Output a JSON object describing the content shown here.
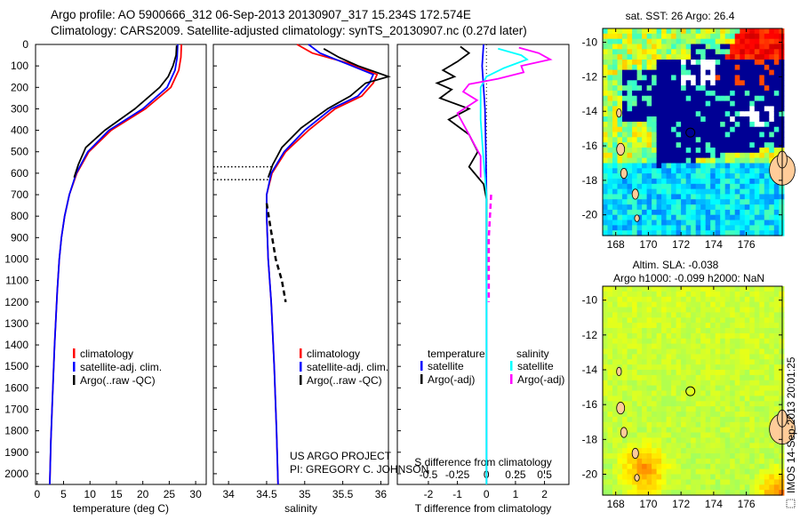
{
  "title": {
    "line1": "Argo profile: AO 5900666_312 06-Sep-2013 20130907_317 15.234S 172.574E",
    "line2": "Climatology: CARS2009. Satellite-adjusted climatology: synTS_20130907.nc (0.27d later)"
  },
  "depth_ticks": [
    "0",
    "100",
    "200",
    "300",
    "400",
    "500",
    "600",
    "700",
    "800",
    "900",
    "1000",
    "1100",
    "1200",
    "1300",
    "1400",
    "1500",
    "1600",
    "1700",
    "1800",
    "1900",
    "2000"
  ],
  "chart_data": [
    {
      "type": "line",
      "name": "temperature-profile",
      "xlabel": "temperature (deg C)",
      "ylabel": "depth",
      "xlim": [
        -0.3,
        32
      ],
      "ylim": [
        2050,
        0
      ],
      "xticks": [
        "0",
        "5",
        "10",
        "15",
        "20",
        "25",
        "30"
      ],
      "xtick_values": [
        0,
        5,
        10,
        15,
        20,
        25,
        30
      ],
      "legend": [
        "climatology",
        "satellite-adj. clim.",
        "Argo(..raw -QC)"
      ],
      "series": [
        {
          "name": "climatology",
          "color": "#ff0000",
          "points": [
            [
              27.3,
              0
            ],
            [
              27.2,
              60
            ],
            [
              26.8,
              120
            ],
            [
              25.3,
              200
            ],
            [
              20.5,
              300
            ],
            [
              14,
              400
            ],
            [
              9.8,
              500
            ],
            [
              7.5,
              600
            ],
            [
              6.1,
              700
            ],
            [
              5.2,
              800
            ],
            [
              4.6,
              900
            ],
            [
              4.2,
              1000
            ],
            [
              3.8,
              1150
            ],
            [
              3.3,
              1400
            ],
            [
              2.9,
              1650
            ],
            [
              2.6,
              1850
            ],
            [
              2.4,
              2050
            ]
          ]
        },
        {
          "name": "satellite-adj. clim.",
          "color": "#0000ff",
          "points": [
            [
              26.6,
              0
            ],
            [
              26.5,
              60
            ],
            [
              26.1,
              120
            ],
            [
              24.6,
              200
            ],
            [
              20,
              300
            ],
            [
              13.6,
              400
            ],
            [
              9.6,
              500
            ],
            [
              7.4,
              600
            ],
            [
              6.1,
              700
            ],
            [
              5.2,
              800
            ],
            [
              4.6,
              900
            ],
            [
              4.2,
              1000
            ],
            [
              3.8,
              1150
            ],
            [
              3.3,
              1400
            ],
            [
              2.9,
              1650
            ],
            [
              2.6,
              1850
            ],
            [
              2.4,
              2050
            ]
          ]
        },
        {
          "name": "Argo(..raw -QC)",
          "color": "#000000",
          "points": [
            [
              26.4,
              5
            ],
            [
              26.3,
              50
            ],
            [
              25.7,
              100
            ],
            [
              24.8,
              150
            ],
            [
              23.2,
              200
            ],
            [
              18.5,
              300
            ],
            [
              12.8,
              400
            ],
            [
              9.2,
              480
            ],
            [
              7.8,
              560
            ],
            [
              7,
              620
            ]
          ]
        }
      ]
    },
    {
      "type": "line",
      "name": "salinity-profile",
      "xlabel": "salinity",
      "xlim": [
        33.8,
        36.1
      ],
      "ylim": [
        2050,
        0
      ],
      "xticks": [
        "34",
        "34.5",
        "35",
        "35.5",
        "36"
      ],
      "xtick_values": [
        34,
        34.5,
        35,
        35.5,
        36
      ],
      "legend": [
        "climatology",
        "satellite-adj. clim.",
        "Argo(..raw -QC)"
      ],
      "dotted_depths": [
        570,
        630
      ],
      "series": [
        {
          "name": "climatology",
          "color": "#ff0000",
          "points": [
            [
              34.9,
              0
            ],
            [
              35.1,
              40
            ],
            [
              35.6,
              90
            ],
            [
              35.95,
              140
            ],
            [
              35.9,
              180
            ],
            [
              35.75,
              240
            ],
            [
              35.4,
              300
            ],
            [
              35.05,
              400
            ],
            [
              34.75,
              500
            ],
            [
              34.57,
              600
            ],
            [
              34.5,
              700
            ],
            [
              34.5,
              800
            ],
            [
              34.52,
              1000
            ],
            [
              34.56,
              1200
            ],
            [
              34.6,
              1500
            ],
            [
              34.63,
              1800
            ],
            [
              34.65,
              2050
            ]
          ]
        },
        {
          "name": "satellite-adj. clim.",
          "color": "#0000ff",
          "points": [
            [
              35.05,
              0
            ],
            [
              35.2,
              40
            ],
            [
              35.55,
              90
            ],
            [
              35.9,
              140
            ],
            [
              35.85,
              180
            ],
            [
              35.7,
              240
            ],
            [
              35.35,
              300
            ],
            [
              35.0,
              400
            ],
            [
              34.73,
              500
            ],
            [
              34.56,
              600
            ],
            [
              34.5,
              700
            ],
            [
              34.5,
              800
            ],
            [
              34.52,
              1000
            ],
            [
              34.56,
              1200
            ],
            [
              34.6,
              1500
            ],
            [
              34.63,
              1800
            ],
            [
              34.65,
              2050
            ]
          ]
        },
        {
          "name": "Argo(..raw -QC)",
          "color": "#000000",
          "points": [
            [
              35.25,
              20
            ],
            [
              35.45,
              60
            ],
            [
              35.7,
              100
            ],
            [
              36.1,
              150
            ],
            [
              35.8,
              180
            ],
            [
              35.6,
              240
            ],
            [
              35.3,
              300
            ],
            [
              34.95,
              390
            ],
            [
              34.7,
              480
            ],
            [
              34.58,
              560
            ],
            [
              34.52,
              620
            ]
          ]
        },
        {
          "name": "Argo(..raw -QC) deep",
          "color": "#000000",
          "dashed": true,
          "points": [
            [
              34.5,
              740
            ],
            [
              34.55,
              850
            ],
            [
              34.62,
              1000
            ],
            [
              34.7,
              1100
            ],
            [
              34.75,
              1200
            ]
          ]
        }
      ]
    },
    {
      "type": "line",
      "name": "difference-profile",
      "xlabel": "T difference from climatology",
      "x2label": "S difference from climatology",
      "xlim": [
        -3.07,
        2.84
      ],
      "ylim": [
        2050,
        0
      ],
      "xticks": [
        "-2",
        "-1",
        "0",
        "1",
        "2"
      ],
      "xtick_values": [
        -2,
        -1,
        0,
        1,
        2
      ],
      "x2ticks": [
        "-0.5",
        "-0.25",
        "0",
        "0.25",
        "0.5"
      ],
      "x2tick_values": [
        -0.5,
        -0.25,
        0,
        0.25,
        0.5
      ],
      "legend_temperature_title": "temperature",
      "legend_salinity_title": "salinity",
      "legend": [
        "satellite",
        "Argo(-adj)",
        "satellite",
        "Argo(-adj)"
      ],
      "series": [
        {
          "name": "temperature satellite",
          "axis": "T",
          "color": "#0000ff",
          "points": [
            [
              -0.1,
              0
            ],
            [
              -0.15,
              100
            ],
            [
              -0.1,
              200
            ],
            [
              -0.05,
              300
            ],
            [
              -0.02,
              500
            ],
            [
              0,
              700
            ],
            [
              0,
              2050
            ]
          ]
        },
        {
          "name": "temperature Argo(-adj)",
          "axis": "T",
          "color": "#000000",
          "points": [
            [
              -0.9,
              10
            ],
            [
              -0.6,
              40
            ],
            [
              -1.0,
              80
            ],
            [
              -1.5,
              120
            ],
            [
              -1.1,
              150
            ],
            [
              -1.7,
              180
            ],
            [
              -1.2,
              210
            ],
            [
              -1.6,
              250
            ],
            [
              -0.6,
              300
            ],
            [
              -1.3,
              350
            ],
            [
              -0.6,
              420
            ],
            [
              -0.3,
              500
            ],
            [
              -0.6,
              570
            ],
            [
              -0.1,
              650
            ],
            [
              0,
              720
            ],
            [
              0,
              1100
            ]
          ]
        },
        {
          "name": "salinity satellite",
          "axis": "S",
          "color": "#00ffff",
          "points": [
            [
              0.1,
              20
            ],
            [
              0.3,
              50
            ],
            [
              0.35,
              70
            ],
            [
              0.15,
              110
            ],
            [
              0,
              150
            ],
            [
              -0.05,
              200
            ],
            [
              -0.05,
              350
            ],
            [
              -0.03,
              500
            ],
            [
              0,
              700
            ],
            [
              0,
              2050
            ]
          ]
        },
        {
          "name": "salinity Argo(-adj)",
          "axis": "S",
          "color": "#ff00ff",
          "points": [
            [
              0.28,
              15
            ],
            [
              0.45,
              40
            ],
            [
              0.55,
              70
            ],
            [
              0.3,
              100
            ],
            [
              0.32,
              130
            ],
            [
              0.1,
              160
            ],
            [
              -0.15,
              185
            ],
            [
              -0.2,
              220
            ],
            [
              -0.08,
              260
            ],
            [
              -0.25,
              320
            ],
            [
              -0.15,
              420
            ],
            [
              -0.05,
              520
            ],
            [
              -0.05,
              620
            ]
          ]
        },
        {
          "name": "salinity Argo(-adj) deep",
          "axis": "S",
          "color": "#ff00ff",
          "dashed": true,
          "points": [
            [
              0.04,
              700
            ],
            [
              0.02,
              900
            ],
            [
              0.02,
              1200
            ]
          ]
        }
      ]
    }
  ],
  "maps": [
    {
      "name": "sst-map",
      "title": "sat. SST: 26 Argo: 26.4",
      "lon_range": [
        167.2,
        178.2
      ],
      "lat_range": [
        -21.2,
        -9.2
      ],
      "lon_ticks": [
        "168",
        "170",
        "172",
        "174",
        "176"
      ],
      "lon_tick_values": [
        168,
        170,
        172,
        174,
        176
      ],
      "lat_ticks": [
        "-10",
        "-12",
        "-14",
        "-16",
        "-18",
        "-20"
      ],
      "lat_tick_values": [
        -10,
        -12,
        -14,
        -16,
        -18,
        -20
      ],
      "float_position": [
        172.574,
        -15.234
      ]
    },
    {
      "name": "sla-map",
      "title_line1": "Altim. SLA: -0.038",
      "title_line2": "Argo h1000: -0.099 h2000: NaN",
      "lon_range": [
        167.2,
        178.2
      ],
      "lat_range": [
        -21.2,
        -9.2
      ],
      "lon_ticks": [
        "168",
        "170",
        "172",
        "174",
        "176"
      ],
      "lon_tick_values": [
        168,
        170,
        172,
        174,
        176
      ],
      "lat_ticks": [
        "-10",
        "-12",
        "-14",
        "-16",
        "-18",
        "-20"
      ],
      "lat_tick_values": [
        -10,
        -12,
        -14,
        -16,
        -18,
        -20
      ],
      "float_position": [
        172.574,
        -15.234
      ]
    }
  ],
  "credits": {
    "project": "US ARGO PROJECT",
    "pi": "PI: GREGORY C. JOHNSON",
    "timestamp": "IMOS 14-Sep-2013 20:01:25"
  },
  "colors": {
    "land": "#ffcc99",
    "no_data": "#ffffff"
  }
}
